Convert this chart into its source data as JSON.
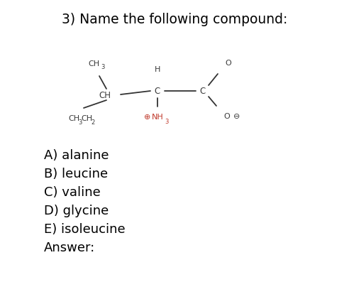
{
  "title": "3) Name the following compound:",
  "title_fontsize": 13.5,
  "background_color": "#ffffff",
  "text_color": "#000000",
  "structure_color": "#3a3a3a",
  "red_color": "#c0392b",
  "options": [
    "A) alanine",
    "B) leucine",
    "C) valine",
    "D) glycine",
    "E) isoleucine",
    "Answer:"
  ],
  "options_fontsize": 13,
  "fig_width": 4.92,
  "fig_height": 3.97,
  "fig_dpi": 100
}
